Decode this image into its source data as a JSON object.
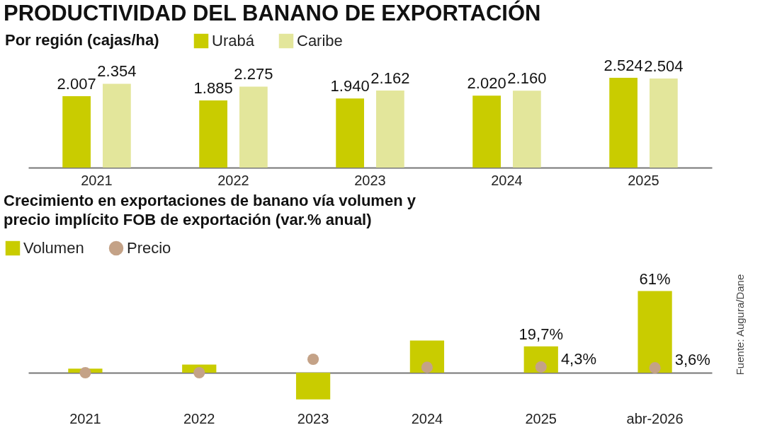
{
  "chart_data": [
    {
      "type": "bar",
      "title": "PRODUCTIVIDAD DEL BANANO DE EXPORTACIÓN",
      "subtitle": "Por región (cajas/ha)",
      "categories": [
        "2021",
        "2022",
        "2023",
        "2024",
        "2025"
      ],
      "series": [
        {
          "name": "Urabá",
          "color": "#c9cc00",
          "values": [
            2007,
            1885,
            1940,
            2020,
            2524
          ],
          "value_labels": [
            "2.007",
            "1.885",
            "1.940",
            "2.020",
            "2.524"
          ]
        },
        {
          "name": "Caribe",
          "color": "#e3e69b",
          "values": [
            2354,
            2275,
            2162,
            2160,
            2504
          ],
          "value_labels": [
            "2.354",
            "2.275",
            "2.162",
            "2.160",
            "2.504"
          ]
        }
      ],
      "legend": "top left",
      "grid": false
    },
    {
      "type": "bar",
      "title": "Crecimiento en exportaciones de banano vía volumen y precio implícito FOB de exportación (var.% anual)",
      "categories": [
        "2021",
        "2022",
        "2023",
        "2024",
        "2025",
        "abr-2026"
      ],
      "series": [
        {
          "name": "Volumen",
          "color": "#c9cc00",
          "values": [
            3,
            6,
            -20,
            24,
            19.7,
            61
          ],
          "value_labels": [
            null,
            null,
            null,
            null,
            "19,7%",
            "61%"
          ]
        },
        {
          "name": "Precio",
          "type": "scatter",
          "marker": "circle",
          "color": "#c4a287",
          "values": [
            0,
            0,
            10,
            4,
            4.3,
            3.6
          ],
          "value_labels": [
            null,
            null,
            null,
            null,
            "4,3%",
            "3,6%"
          ]
        }
      ],
      "legend": "top left",
      "grid": false,
      "annotations": [
        "Fuente: Augura/Dane"
      ]
    }
  ]
}
